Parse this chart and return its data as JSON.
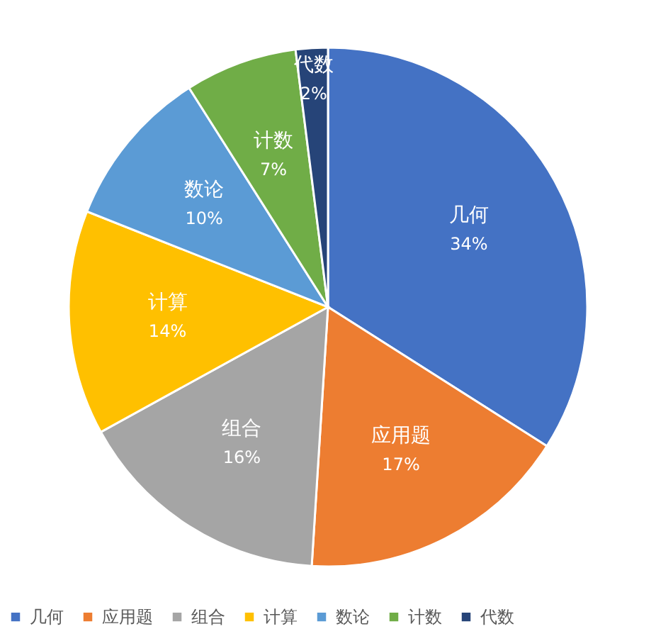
{
  "chart_data": {
    "type": "pie",
    "categories": [
      "几何",
      "应用题",
      "组合",
      "计算",
      "数论",
      "计数",
      "代数"
    ],
    "values": [
      34,
      17,
      16,
      14,
      10,
      7,
      2
    ],
    "value_labels": [
      "34%",
      "17%",
      "16%",
      "14%",
      "10%",
      "7%",
      "2%"
    ],
    "colors": [
      "#4472c4",
      "#ed7d31",
      "#a5a5a5",
      "#ffc000",
      "#5b9bd5",
      "#70ad47",
      "#264478"
    ],
    "legend": "bottom"
  }
}
